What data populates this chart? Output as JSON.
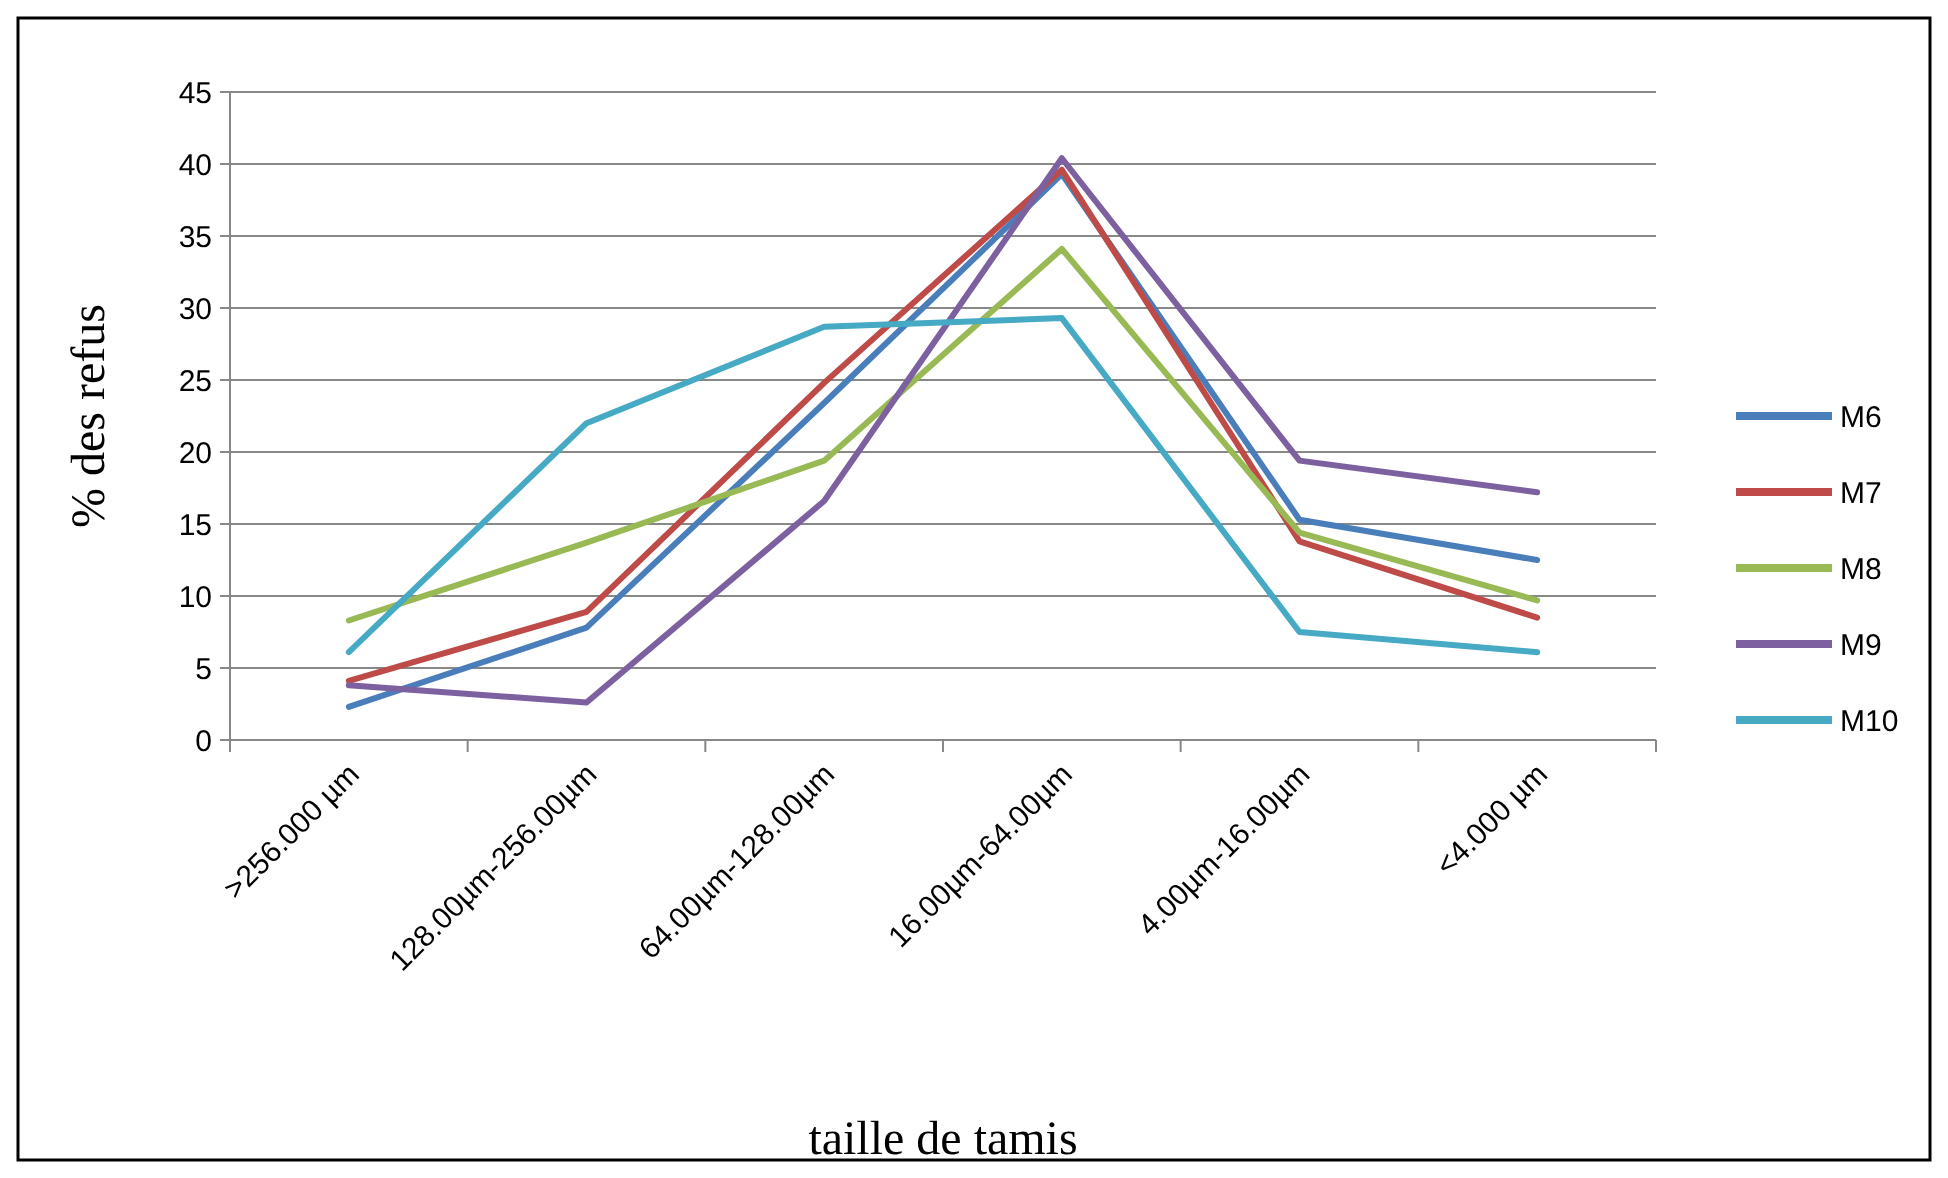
{
  "chart_data": {
    "type": "line",
    "xlabel": "taille de tamis",
    "ylabel": "% des refus",
    "categories": [
      ">256.000 µm",
      "128.00µm-256.00µm",
      "64.00µm-128.00µm",
      "16.00µm-64.00µm",
      "4.00µm-16.00µm",
      "<4.000 µm"
    ],
    "series": [
      {
        "name": "M6",
        "color": "#4a7ebb",
        "values": [
          2.3,
          7.8,
          23.4,
          39.3,
          15.3,
          12.5
        ]
      },
      {
        "name": "M7",
        "color": "#be4b48",
        "values": [
          4.1,
          8.9,
          24.8,
          39.6,
          13.8,
          8.5
        ]
      },
      {
        "name": "M8",
        "color": "#98b954",
        "values": [
          8.3,
          13.7,
          19.4,
          34.1,
          14.4,
          9.7
        ]
      },
      {
        "name": "M9",
        "color": "#7d60a0",
        "values": [
          3.8,
          2.6,
          16.6,
          40.4,
          19.4,
          17.2
        ]
      },
      {
        "name": "M10",
        "color": "#46aac5",
        "values": [
          6.1,
          22,
          28.7,
          29.3,
          7.5,
          6.1
        ]
      }
    ],
    "ylim": [
      0,
      45
    ],
    "yticks": [
      0,
      5,
      10,
      15,
      20,
      25,
      30,
      35,
      40,
      45
    ],
    "grid": "y",
    "legend": "right",
    "marker": "none",
    "line_style": "solid"
  }
}
